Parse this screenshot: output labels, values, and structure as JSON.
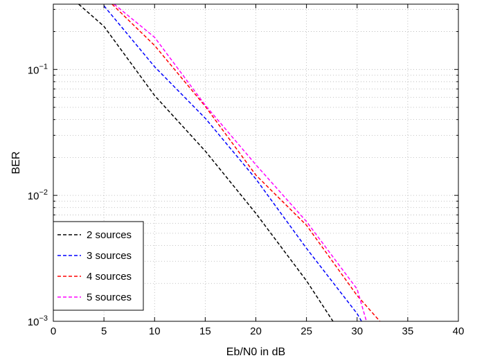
{
  "chart_data": {
    "type": "line",
    "title": "",
    "xlabel": "Eb/N0 in dB",
    "ylabel": "BER",
    "xlim": [
      0,
      40
    ],
    "ylim": [
      0.001,
      0.33
    ],
    "yscale": "log",
    "grid": true,
    "legend_position": "bottom-left",
    "x_ticks": [
      "0",
      "5",
      "10",
      "15",
      "20",
      "25",
      "30",
      "35",
      "40"
    ],
    "y_tick_labels": [
      {
        "value": 0.1,
        "base": "10",
        "exp": "−1"
      },
      {
        "value": 0.01,
        "base": "10",
        "exp": "−2"
      },
      {
        "value": 0.001,
        "base": "10",
        "exp": "−3"
      }
    ],
    "series": [
      {
        "name": "2 sources",
        "color": "#000000",
        "points": [
          [
            2.5,
            0.33
          ],
          [
            5,
            0.22
          ],
          [
            10,
            0.062
          ],
          [
            15,
            0.0225
          ],
          [
            20,
            0.0072
          ],
          [
            25,
            0.0021
          ],
          [
            27.8,
            0.00095
          ]
        ]
      },
      {
        "name": "3 sources",
        "color": "#0000ff",
        "points": [
          [
            5,
            0.32
          ],
          [
            10,
            0.105
          ],
          [
            15,
            0.041
          ],
          [
            20,
            0.0135
          ],
          [
            25,
            0.0038
          ],
          [
            30,
            0.00115
          ],
          [
            30.6,
            0.00095
          ]
        ]
      },
      {
        "name": "4 sources",
        "color": "#ff0000",
        "points": [
          [
            5.8,
            0.33
          ],
          [
            10,
            0.155
          ],
          [
            15,
            0.051
          ],
          [
            20,
            0.0145
          ],
          [
            25,
            0.0058
          ],
          [
            30,
            0.0016
          ],
          [
            32.5,
            0.00095
          ]
        ]
      },
      {
        "name": "5 sources",
        "color": "#ff00ff",
        "points": [
          [
            6,
            0.33
          ],
          [
            10,
            0.18
          ],
          [
            15,
            0.052
          ],
          [
            20,
            0.0175
          ],
          [
            25,
            0.0062
          ],
          [
            30,
            0.0018
          ],
          [
            31,
            0.00095
          ]
        ]
      }
    ]
  }
}
